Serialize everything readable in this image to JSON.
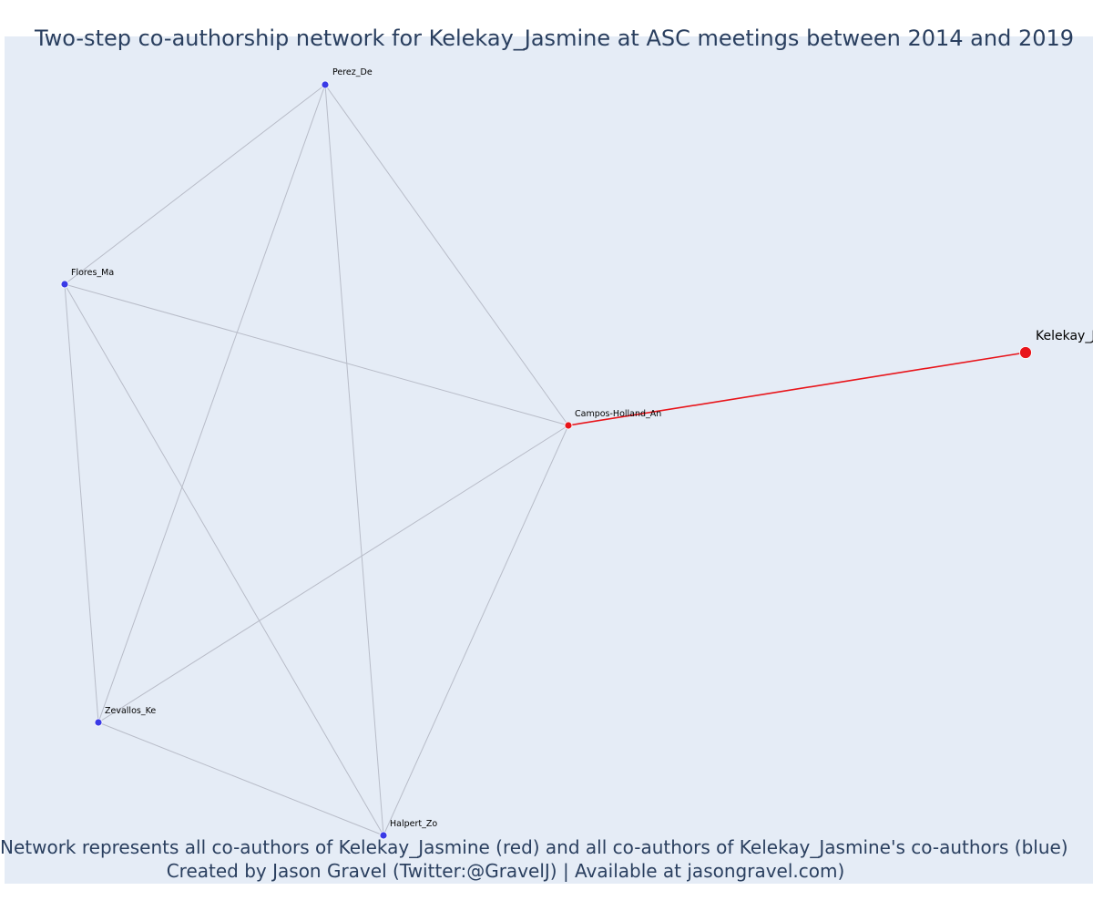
{
  "title": "Two-step co-authorship network for Kelekay_Jasmine at ASC meetings between 2014 and 2019",
  "caption_line1": "Network represents all co-authors of Kelekay_Jasmine (red) and all co-authors of Kelekay_Jasmine's co-authors (blue)",
  "caption_line2": "Created by Jason Gravel (Twitter:@GravelJ) | Available at jasongravel.com)",
  "colors": {
    "background": "#e5ecf6",
    "edge": "#b8bcc8",
    "focal_edge": "#e8141a",
    "coauthor_node": "#e8141a",
    "second_step_node": "#3a3ae6",
    "text": "#2a3f5f"
  },
  "nodes": [
    {
      "id": "kelekay",
      "label": "Kelekay_Jasmine",
      "group": "focal"
    },
    {
      "id": "campos",
      "label": "Campos-Holland_An",
      "group": "coauthor"
    },
    {
      "id": "perez",
      "label": "Perez_De",
      "group": "second_step"
    },
    {
      "id": "flores",
      "label": "Flores_Ma",
      "group": "second_step"
    },
    {
      "id": "zevallos",
      "label": "Zevallos_Ke",
      "group": "second_step"
    },
    {
      "id": "halpert",
      "label": "Halpert_Zo",
      "group": "second_step"
    }
  ],
  "edges": [
    {
      "source": "kelekay",
      "target": "campos",
      "focal": true
    },
    {
      "source": "campos",
      "target": "perez",
      "focal": false
    },
    {
      "source": "campos",
      "target": "flores",
      "focal": false
    },
    {
      "source": "campos",
      "target": "zevallos",
      "focal": false
    },
    {
      "source": "campos",
      "target": "halpert",
      "focal": false
    },
    {
      "source": "perez",
      "target": "flores",
      "focal": false
    },
    {
      "source": "perez",
      "target": "zevallos",
      "focal": false
    },
    {
      "source": "perez",
      "target": "halpert",
      "focal": false
    },
    {
      "source": "flores",
      "target": "zevallos",
      "focal": false
    },
    {
      "source": "flores",
      "target": "halpert",
      "focal": false
    },
    {
      "source": "zevallos",
      "target": "halpert",
      "focal": false
    }
  ]
}
